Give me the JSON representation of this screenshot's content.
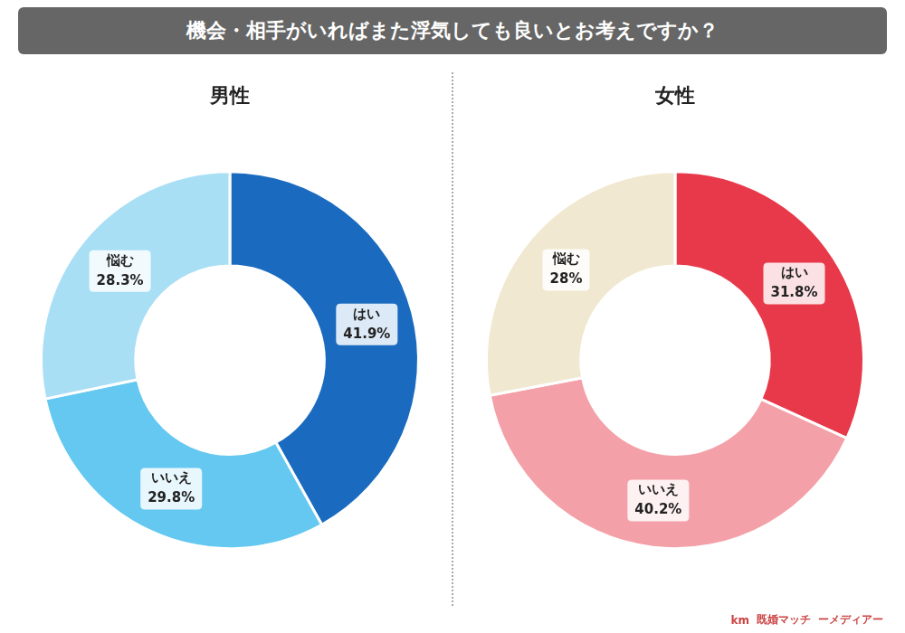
{
  "title": "機会・相手がいればまた浮気しても良いとお考えですか？",
  "annotations": [
    "km",
    "既婚マッチ",
    "ーメディアー"
  ],
  "chart_data": [
    {
      "type": "doughnut",
      "title": "男性",
      "categories": [
        "はい",
        "いいえ",
        "悩む"
      ],
      "values": [
        41.9,
        29.8,
        28.3
      ],
      "value_labels": [
        "41.9%",
        "29.8%",
        "28.3%"
      ],
      "colors": [
        "#1a6bbf",
        "#64c8f0",
        "#a8dff5"
      ],
      "data_labels": true
    },
    {
      "type": "doughnut",
      "title": "女性",
      "categories": [
        "はい",
        "いいえ",
        "悩む"
      ],
      "values": [
        31.8,
        40.2,
        28.0
      ],
      "value_labels": [
        "31.8%",
        "40.2%",
        "28%"
      ],
      "colors": [
        "#e8394a",
        "#f4a0a8",
        "#f0e8d0"
      ],
      "data_labels": true
    }
  ]
}
